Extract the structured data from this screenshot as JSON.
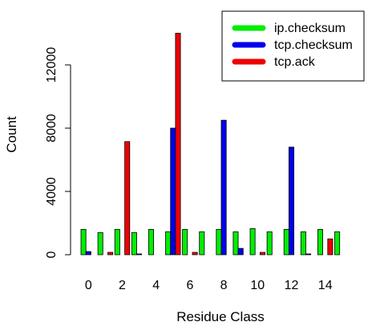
{
  "chart_data": {
    "type": "bar",
    "xlabel": "Residue Class",
    "ylabel": "Count",
    "ylim": [
      0,
      14200
    ],
    "y_ticks": [
      0,
      4000,
      8000,
      12000
    ],
    "x_tick_labels": [
      "0",
      "2",
      "4",
      "6",
      "8",
      "10",
      "12",
      "14"
    ],
    "x_tick_categories": [
      0,
      2,
      4,
      6,
      8,
      10,
      12,
      14
    ],
    "categories": [
      0,
      1,
      2,
      3,
      4,
      5,
      6,
      7,
      8,
      9,
      10,
      11,
      12,
      13,
      14,
      15
    ],
    "legend_position": "top-right",
    "grid": false,
    "series": [
      {
        "name": "ip.checksum",
        "color": "#00ee00",
        "values": [
          1600,
          1400,
          1600,
          1400,
          1600,
          1450,
          1600,
          1450,
          1600,
          1450,
          1650,
          1450,
          1600,
          1450,
          1600,
          1450
        ]
      },
      {
        "name": "tcp.checksum",
        "color": "#0000ee",
        "values": [
          200,
          0,
          0,
          50,
          0,
          8000,
          0,
          0,
          8500,
          400,
          0,
          0,
          6800,
          50,
          0,
          0
        ]
      },
      {
        "name": "tcp.ack",
        "color": "#ee0000",
        "values": [
          0,
          150,
          7150,
          0,
          0,
          14000,
          150,
          0,
          0,
          0,
          150,
          0,
          0,
          0,
          1000,
          0
        ]
      }
    ]
  }
}
